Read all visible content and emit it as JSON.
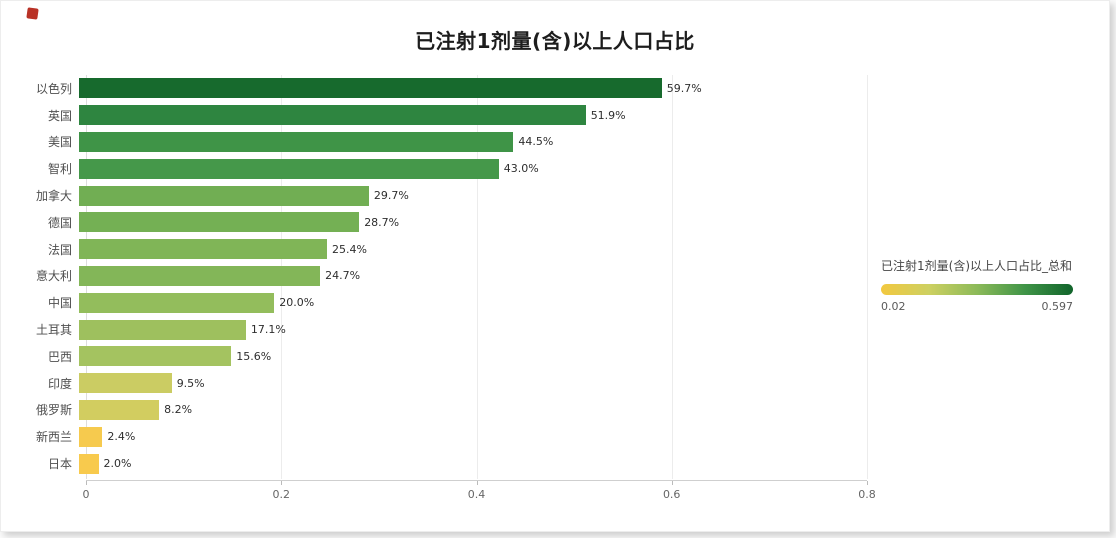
{
  "corner_mark_color": "#b93226",
  "chart_data": {
    "type": "bar",
    "orientation": "horizontal",
    "title": "已注射1剂量(含)以上人口占比",
    "categories": [
      "以色列",
      "英国",
      "美国",
      "智利",
      "加拿大",
      "德国",
      "法国",
      "意大利",
      "中国",
      "土耳其",
      "巴西",
      "印度",
      "俄罗斯",
      "新西兰",
      "日本"
    ],
    "values": [
      0.597,
      0.519,
      0.445,
      0.43,
      0.297,
      0.287,
      0.254,
      0.247,
      0.2,
      0.171,
      0.156,
      0.095,
      0.082,
      0.024,
      0.02
    ],
    "value_labels": [
      "59.7%",
      "51.9%",
      "44.5%",
      "43.0%",
      "29.7%",
      "28.7%",
      "25.4%",
      "24.7%",
      "20.0%",
      "17.1%",
      "15.6%",
      "9.5%",
      "8.2%",
      "2.4%",
      "2.0%"
    ],
    "bar_colors": [
      "#176a2d",
      "#2e8540",
      "#3f9447",
      "#45984a",
      "#71ae53",
      "#74b054",
      "#80b557",
      "#83b658",
      "#93bd5c",
      "#9ec05e",
      "#a4c360",
      "#cbcc63",
      "#d2cd60",
      "#f6ca4e",
      "#f8ca4d"
    ],
    "xlabel": "",
    "ylabel": "",
    "xlim": [
      0,
      0.8
    ],
    "x_ticks": [
      "0",
      "0.2",
      "0.4",
      "0.6",
      "0.8"
    ],
    "x_tick_values": [
      0,
      0.2,
      0.4,
      0.6,
      0.8
    ],
    "grid": true,
    "legend_position": "right"
  },
  "legend": {
    "title": "已注射1剂量(含)以上人口占比_总和",
    "min_label": "0.02",
    "max_label": "0.597",
    "gradient_stops": [
      "#f2c83f",
      "#cdd061",
      "#8cba59",
      "#3f9447",
      "#11642b"
    ]
  }
}
